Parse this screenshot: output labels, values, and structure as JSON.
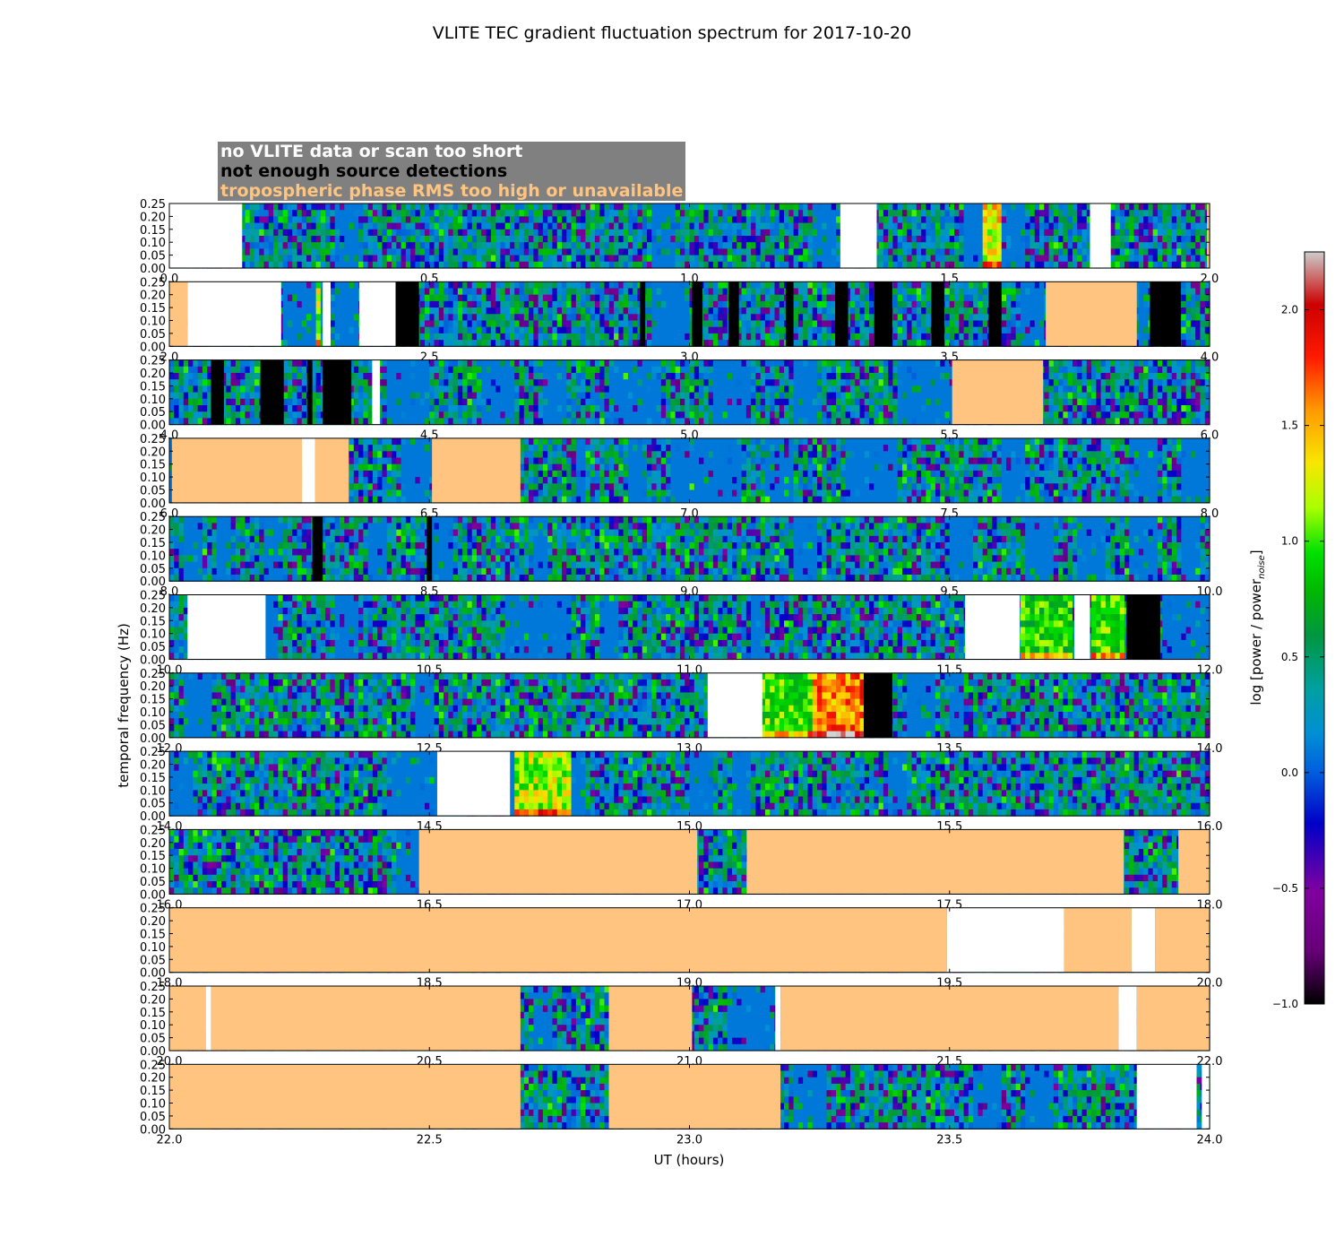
{
  "chart_data": {
    "type": "heatmap",
    "title": "VLITE TEC gradient fluctuation spectrum for 2017-10-20",
    "xlabel": "UT (hours)",
    "ylabel": "temporal frequency (Hz)",
    "ylim": [
      0.0,
      0.25
    ],
    "yticks": [
      "0.00",
      "0.05",
      "0.10",
      "0.15",
      "0.20",
      "0.25"
    ],
    "colorbar": {
      "label_main": "log [power / power",
      "label_sub": "noise",
      "label_end": "]",
      "range": [
        -1.0,
        2.25
      ],
      "ticks": [
        "−1.0",
        "−0.5",
        "0.0",
        "0.5",
        "1.0",
        "1.5",
        "2.0"
      ],
      "tick_values": [
        -1.0,
        -0.5,
        0.0,
        0.5,
        1.0,
        1.5,
        2.0
      ]
    },
    "legend": [
      {
        "label": "no VLITE data or scan too short",
        "mask": "white",
        "color": "#ffffff"
      },
      {
        "label": "not enough source detections",
        "mask": "black",
        "color": "#000000"
      },
      {
        "label": "tropospheric phase RMS too high or unavailable",
        "mask": "orange",
        "color": "#ffc580"
      }
    ],
    "panels": [
      {
        "x_range": [
          0.0,
          2.0
        ],
        "ticks": [
          "0.0",
          "0.5",
          "1.0",
          "1.5",
          "2.0"
        ],
        "masks": [
          [
            0.0,
            0.14,
            "white"
          ],
          [
            1.29,
            1.36,
            "white"
          ],
          [
            1.77,
            1.81,
            "white"
          ],
          [
            1.995,
            2.0,
            "orange"
          ]
        ],
        "quiet": [
          [
            0.32,
            0.36
          ],
          [
            0.93,
            0.97
          ],
          [
            1.24,
            1.28
          ],
          [
            1.53,
            1.56
          ],
          [
            1.6,
            1.65
          ]
        ],
        "hot": [
          [
            1.56,
            1.6,
            1.3
          ]
        ]
      },
      {
        "x_range": [
          2.0,
          4.0
        ],
        "ticks": [
          "2.0",
          "2.5",
          "3.0",
          "3.5",
          "4.0"
        ],
        "masks": [
          [
            2.0,
            2.035,
            "orange"
          ],
          [
            2.035,
            2.215,
            "white"
          ],
          [
            2.295,
            2.31,
            "white"
          ],
          [
            2.365,
            2.435,
            "white"
          ],
          [
            2.435,
            2.48,
            "black"
          ],
          [
            2.905,
            2.915,
            "black"
          ],
          [
            3.005,
            3.025,
            "black"
          ],
          [
            3.075,
            3.095,
            "black"
          ],
          [
            3.185,
            3.2,
            "black"
          ],
          [
            3.28,
            3.305,
            "black"
          ],
          [
            3.355,
            3.39,
            "black"
          ],
          [
            3.465,
            3.49,
            "black"
          ],
          [
            3.575,
            3.6,
            "black"
          ],
          [
            3.685,
            3.86,
            "orange"
          ],
          [
            3.885,
            3.945,
            "black"
          ]
        ],
        "quiet": [
          [
            2.215,
            2.28
          ],
          [
            2.315,
            2.365
          ],
          [
            2.93,
            3.0
          ],
          [
            3.64,
            3.685
          ],
          [
            3.86,
            3.885
          ]
        ],
        "hot": [
          [
            2.28,
            2.295,
            1.1
          ]
        ]
      },
      {
        "x_range": [
          4.0,
          6.0
        ],
        "ticks": [
          "4.0",
          "4.5",
          "5.0",
          "5.5",
          "6.0"
        ],
        "masks": [
          [
            4.08,
            4.105,
            "black"
          ],
          [
            4.175,
            4.22,
            "black"
          ],
          [
            4.265,
            4.275,
            "black"
          ],
          [
            4.295,
            4.35,
            "black"
          ],
          [
            4.39,
            4.405,
            "white"
          ],
          [
            5.505,
            5.68,
            "orange"
          ]
        ],
        "quiet": [
          [
            4.42,
            4.5
          ],
          [
            4.6,
            4.66
          ],
          [
            4.72,
            4.76
          ],
          [
            4.85,
            4.95
          ],
          [
            5.05,
            5.12
          ],
          [
            5.2,
            5.25
          ],
          [
            5.4,
            5.505
          ]
        ],
        "hot": []
      },
      {
        "x_range": [
          6.0,
          8.0
        ],
        "ticks": [
          "6.0",
          "6.5",
          "7.0",
          "7.5",
          "8.0"
        ],
        "masks": [
          [
            6.005,
            6.255,
            "orange"
          ],
          [
            6.255,
            6.28,
            "white"
          ],
          [
            6.28,
            6.345,
            "orange"
          ],
          [
            6.505,
            6.675,
            "orange"
          ]
        ],
        "quiet": [
          [
            6.0,
            6.005
          ],
          [
            6.45,
            6.505
          ],
          [
            6.78,
            6.8
          ],
          [
            6.88,
            6.92
          ],
          [
            6.96,
            7.1
          ],
          [
            7.15,
            7.2
          ],
          [
            7.3,
            7.4
          ],
          [
            7.6,
            7.65
          ],
          [
            7.85,
            7.9
          ],
          [
            7.95,
            8.0
          ]
        ],
        "hot": []
      },
      {
        "x_range": [
          8.0,
          10.0
        ],
        "ticks": [
          "8.0",
          "8.5",
          "9.0",
          "9.5",
          "10.0"
        ],
        "masks": [
          [
            8.275,
            8.295,
            "black"
          ],
          [
            8.495,
            8.505,
            "black"
          ]
        ],
        "quiet": [
          [
            8.03,
            8.06
          ],
          [
            8.09,
            8.12
          ],
          [
            8.18,
            8.22
          ],
          [
            8.38,
            8.42
          ],
          [
            8.5,
            8.55
          ],
          [
            8.7,
            8.73
          ],
          [
            9.2,
            9.25
          ],
          [
            9.5,
            9.55
          ],
          [
            9.65,
            9.7
          ],
          [
            9.75,
            9.8
          ],
          [
            9.85,
            9.9
          ],
          [
            9.95,
            9.98
          ]
        ],
        "hot": []
      },
      {
        "x_range": [
          10.0,
          12.0
        ],
        "ticks": [
          "10.0",
          "10.5",
          "11.0",
          "11.5",
          "12.0"
        ],
        "masks": [
          [
            10.035,
            10.185,
            "white"
          ],
          [
            11.53,
            11.635,
            "white"
          ],
          [
            11.74,
            11.77,
            "white"
          ],
          [
            11.84,
            11.905,
            "black"
          ]
        ],
        "quiet": [
          [
            10.185,
            10.21
          ],
          [
            10.32,
            10.36
          ],
          [
            10.65,
            10.77
          ],
          [
            10.83,
            10.86
          ],
          [
            11.12,
            11.15
          ],
          [
            11.905,
            12.0
          ]
        ],
        "hot": [
          [
            11.635,
            11.74,
            0.8
          ],
          [
            11.77,
            11.84,
            0.9
          ]
        ]
      },
      {
        "x_range": [
          12.0,
          14.0
        ],
        "ticks": [
          "12.0",
          "12.5",
          "13.0",
          "13.5",
          "14.0"
        ],
        "masks": [
          [
            13.035,
            13.14,
            "white"
          ],
          [
            13.335,
            13.39,
            "black"
          ]
        ],
        "quiet": [
          [
            12.03,
            12.08
          ],
          [
            12.47,
            12.51
          ],
          [
            13.42,
            13.47
          ],
          [
            13.5,
            13.53
          ]
        ],
        "hot": [
          [
            13.14,
            13.235,
            0.9
          ],
          [
            13.235,
            13.335,
            1.6
          ]
        ]
      },
      {
        "x_range": [
          14.0,
          16.0
        ],
        "ticks": [
          "14.0",
          "14.5",
          "15.0",
          "15.5",
          "16.0"
        ],
        "masks": [
          [
            14.515,
            14.655,
            "white"
          ]
        ],
        "quiet": [
          [
            14.0,
            14.05
          ],
          [
            14.42,
            14.515
          ],
          [
            14.655,
            14.66
          ],
          [
            14.77,
            14.8
          ],
          [
            15.0,
            15.05
          ],
          [
            15.08,
            15.12
          ],
          [
            15.38,
            15.42
          ]
        ],
        "hot": [
          [
            14.655,
            14.77,
            1.1
          ]
        ]
      },
      {
        "x_range": [
          16.0,
          18.0
        ],
        "ticks": [
          "16.0",
          "16.5",
          "17.0",
          "17.5",
          "18.0"
        ],
        "masks": [
          [
            16.48,
            17.015,
            "orange"
          ],
          [
            17.11,
            17.835,
            "orange"
          ],
          [
            17.94,
            18.0,
            "orange"
          ]
        ],
        "quiet": [
          [
            16.44,
            16.48
          ]
        ],
        "hot": []
      },
      {
        "x_range": [
          18.0,
          20.0
        ],
        "ticks": [
          "18.0",
          "18.5",
          "19.0",
          "19.5",
          "20.0"
        ],
        "masks": [
          [
            18.0,
            19.495,
            "orange"
          ],
          [
            19.495,
            19.72,
            "white"
          ],
          [
            19.72,
            19.85,
            "orange"
          ],
          [
            19.85,
            19.895,
            "white"
          ],
          [
            19.895,
            20.0,
            "orange"
          ]
        ],
        "quiet": [],
        "hot": []
      },
      {
        "x_range": [
          20.0,
          22.0
        ],
        "ticks": [
          "20.0",
          "20.5",
          "21.0",
          "21.5",
          "22.0"
        ],
        "masks": [
          [
            20.0,
            20.07,
            "orange"
          ],
          [
            20.07,
            20.08,
            "white"
          ],
          [
            20.08,
            20.675,
            "orange"
          ],
          [
            20.845,
            21.005,
            "orange"
          ],
          [
            21.165,
            21.175,
            "white"
          ],
          [
            21.175,
            21.825,
            "orange"
          ],
          [
            21.825,
            21.86,
            "white"
          ],
          [
            21.86,
            22.0,
            "orange"
          ]
        ],
        "quiet": [
          [
            20.7,
            20.74
          ],
          [
            21.07,
            21.16
          ]
        ],
        "hot": []
      },
      {
        "x_range": [
          22.0,
          24.0
        ],
        "ticks": [
          "22.0",
          "22.5",
          "23.0",
          "23.5",
          "24.0"
        ],
        "masks": [
          [
            22.0,
            22.675,
            "orange"
          ],
          [
            22.845,
            23.175,
            "orange"
          ],
          [
            23.86,
            23.975,
            "white"
          ],
          [
            23.985,
            24.0,
            "white"
          ]
        ],
        "quiet": [
          [
            23.2,
            23.26
          ],
          [
            23.55,
            23.6
          ],
          [
            23.65,
            23.7
          ]
        ],
        "hot": []
      }
    ]
  }
}
